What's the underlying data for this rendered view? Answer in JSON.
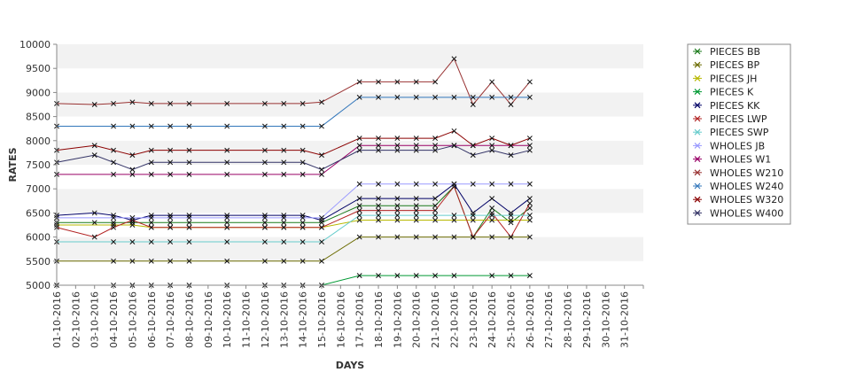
{
  "chart_data": {
    "type": "line",
    "xlabel": "DAYS",
    "ylabel": "RATES",
    "ylim": [
      5000,
      10000
    ],
    "yticks": [
      5000,
      5500,
      6000,
      6500,
      7000,
      7500,
      8000,
      8500,
      9000,
      9500,
      10000
    ],
    "categories": [
      "01-10-2016",
      "02-10-2016",
      "03-10-2016",
      "04-10-2016",
      "05-10-2016",
      "06-10-2016",
      "07-10-2016",
      "08-10-2016",
      "09-10-2016",
      "10-10-2016",
      "11-10-2016",
      "12-10-2016",
      "13-10-2016",
      "14-10-2016",
      "15-10-2016",
      "16-10-2016",
      "17-10-2016",
      "18-10-2016",
      "19-10-2016",
      "20-10-2016",
      "21-10-2016",
      "22-10-2016",
      "23-10-2016",
      "24-10-2016",
      "25-10-2016",
      "26-10-2016",
      "27-10-2016",
      "28-10-2016",
      "29-10-2016",
      "30-10-2016",
      "31-10-2016"
    ],
    "grid": "alternating horizontal bands",
    "legend_position": "right",
    "series": [
      {
        "name": "PIECES BB",
        "color": "#1a7a1a",
        "values": [
          6300,
          null,
          6300,
          6300,
          6300,
          6300,
          6300,
          6300,
          null,
          6300,
          null,
          6300,
          6300,
          6300,
          6300,
          null,
          6650,
          6650,
          6650,
          6650,
          6650,
          7050,
          6000,
          6600,
          6300,
          6600,
          null,
          null,
          null,
          null,
          null
        ]
      },
      {
        "name": "PIECES BP",
        "color": "#6b6b00",
        "values": [
          5500,
          null,
          null,
          5500,
          5500,
          5500,
          5500,
          5500,
          null,
          5500,
          null,
          5500,
          5500,
          5500,
          5500,
          null,
          6000,
          6000,
          6000,
          6000,
          6000,
          6000,
          6000,
          6000,
          6000,
          6000,
          null,
          null,
          null,
          null,
          null
        ]
      },
      {
        "name": "PIECES JH",
        "color": "#b8b800",
        "values": [
          6250,
          null,
          null,
          6250,
          6250,
          6200,
          6200,
          6200,
          null,
          6200,
          null,
          6200,
          6200,
          6200,
          6200,
          null,
          6350,
          6350,
          6350,
          6350,
          6350,
          6350,
          6350,
          6350,
          6350,
          6350,
          null,
          null,
          null,
          null,
          null
        ]
      },
      {
        "name": "PIECES K",
        "color": "#009933",
        "values": [
          5000,
          null,
          null,
          5000,
          5000,
          5000,
          5000,
          5000,
          null,
          5000,
          null,
          5000,
          5000,
          5000,
          5000,
          null,
          5200,
          5200,
          5200,
          5200,
          5200,
          5200,
          null,
          5200,
          5200,
          5200,
          null,
          null,
          null,
          null,
          null
        ]
      },
      {
        "name": "PIECES KK",
        "color": "#000066",
        "values": [
          6450,
          null,
          6500,
          6450,
          6350,
          6450,
          6450,
          6450,
          null,
          6450,
          null,
          6450,
          6450,
          6450,
          6350,
          null,
          6800,
          6800,
          6800,
          6800,
          6800,
          7100,
          6500,
          6800,
          6500,
          6800,
          null,
          null,
          null,
          null,
          null
        ]
      },
      {
        "name": "PIECES LWP",
        "color": "#b22222",
        "values": [
          6200,
          null,
          6000,
          6200,
          6350,
          6200,
          6200,
          6200,
          null,
          6200,
          null,
          6200,
          6200,
          6200,
          6200,
          null,
          6550,
          6550,
          6550,
          6550,
          6550,
          7050,
          6000,
          6500,
          6000,
          6700,
          null,
          null,
          null,
          null,
          null
        ]
      },
      {
        "name": "PIECES SWP",
        "color": "#66cccc",
        "values": [
          5900,
          null,
          null,
          5900,
          5900,
          5900,
          5900,
          5900,
          null,
          5900,
          null,
          5900,
          5900,
          5900,
          5900,
          null,
          6450,
          6450,
          6450,
          6450,
          6450,
          6450,
          6450,
          6450,
          6450,
          6450,
          null,
          null,
          null,
          null,
          null
        ]
      },
      {
        "name": "WHOLES JB",
        "color": "#9999ff",
        "values": [
          6400,
          null,
          null,
          6400,
          6400,
          6400,
          6400,
          6400,
          null,
          6400,
          null,
          6400,
          6400,
          6400,
          6400,
          null,
          7100,
          7100,
          7100,
          7100,
          7100,
          7100,
          7100,
          7100,
          7100,
          7100,
          null,
          null,
          null,
          null,
          null
        ]
      },
      {
        "name": "WHOLES W1",
        "color": "#990066",
        "values": [
          7300,
          null,
          null,
          7300,
          7300,
          7300,
          7300,
          7300,
          null,
          7300,
          null,
          7300,
          7300,
          7300,
          7300,
          null,
          7900,
          7900,
          7900,
          7900,
          7900,
          7900,
          7900,
          7900,
          7900,
          7900,
          null,
          null,
          null,
          null,
          null
        ]
      },
      {
        "name": "WHOLES W210",
        "color": "#993333",
        "values": [
          8770,
          null,
          8750,
          8770,
          8800,
          8770,
          8770,
          8770,
          null,
          8770,
          null,
          8770,
          8770,
          8770,
          8800,
          null,
          9220,
          9220,
          9220,
          9220,
          9220,
          9700,
          8750,
          9220,
          8750,
          9220,
          null,
          null,
          null,
          null,
          null
        ]
      },
      {
        "name": "WHOLES W240",
        "color": "#3377bb",
        "values": [
          8300,
          null,
          null,
          8300,
          8300,
          8300,
          8300,
          8300,
          null,
          8300,
          null,
          8300,
          8300,
          8300,
          8300,
          null,
          8900,
          8900,
          8900,
          8900,
          8900,
          8900,
          8900,
          8900,
          8900,
          8900,
          null,
          null,
          null,
          null,
          null
        ]
      },
      {
        "name": "WHOLES W320",
        "color": "#8b0000",
        "values": [
          7800,
          null,
          7900,
          7800,
          7700,
          7800,
          7800,
          7800,
          null,
          7800,
          null,
          7800,
          7800,
          7800,
          7700,
          null,
          8050,
          8050,
          8050,
          8050,
          8050,
          8200,
          7900,
          8050,
          7900,
          8050,
          null,
          null,
          null,
          null,
          null
        ]
      },
      {
        "name": "WHOLES W400",
        "color": "#333366",
        "values": [
          7550,
          null,
          7700,
          7550,
          7400,
          7550,
          7550,
          7550,
          null,
          7550,
          null,
          7550,
          7550,
          7550,
          7400,
          null,
          7800,
          7800,
          7800,
          7800,
          7800,
          7900,
          7700,
          7800,
          7700,
          7800,
          null,
          null,
          null,
          null,
          null
        ]
      }
    ]
  }
}
